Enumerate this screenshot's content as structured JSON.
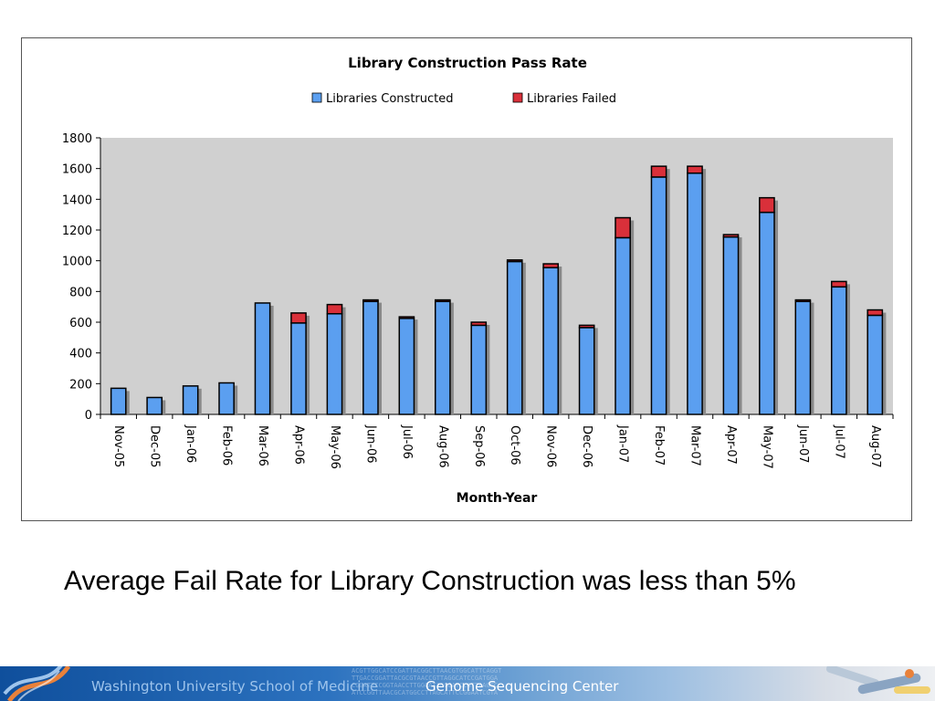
{
  "chart_data": {
    "type": "bar",
    "stacked": true,
    "title": "Library Construction Pass Rate",
    "xlabel": "Month-Year",
    "ylabel": "",
    "ylim": [
      0,
      1800
    ],
    "yticks": [
      0,
      200,
      400,
      600,
      800,
      1000,
      1200,
      1400,
      1600,
      1800
    ],
    "legend_position": "top",
    "grid": false,
    "plot_background": "#d0d0d0",
    "categories": [
      "Nov-05",
      "Dec-05",
      "Jan-06",
      "Feb-06",
      "Mar-06",
      "Apr-06",
      "May-06",
      "Jun-06",
      "Jul-06",
      "Aug-06",
      "Sep-06",
      "Oct-06",
      "Nov-06",
      "Dec-06",
      "Jan-07",
      "Feb-07",
      "Mar-07",
      "Apr-07",
      "May-07",
      "Jun-07",
      "Jul-07",
      "Aug-07"
    ],
    "series": [
      {
        "name": "Libraries Constructed",
        "color": "#5b9ff0",
        "values": [
          170,
          110,
          185,
          205,
          725,
          595,
          655,
          735,
          625,
          735,
          580,
          995,
          955,
          565,
          1150,
          1545,
          1570,
          1155,
          1315,
          735,
          830,
          645
        ]
      },
      {
        "name": "Libraries Failed",
        "color": "#d9303a",
        "values": [
          0,
          0,
          0,
          0,
          0,
          65,
          60,
          10,
          10,
          10,
          20,
          10,
          25,
          15,
          130,
          70,
          45,
          15,
          95,
          10,
          35,
          35
        ]
      }
    ]
  },
  "caption": "Average Fail Rate for Library Construction was less than 5%",
  "footer": {
    "school": "Washington University School of Medicine",
    "center": "Genome Sequencing Center"
  }
}
